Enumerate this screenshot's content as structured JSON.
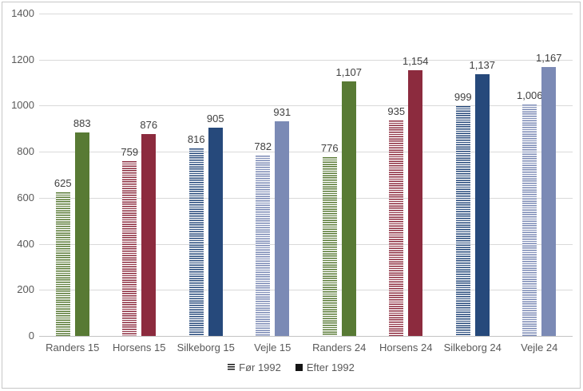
{
  "chart_data": {
    "type": "bar",
    "title": "",
    "categories": [
      "Randers 15",
      "Horsens 15",
      "Silkeborg 15",
      "Vejle 15",
      "Randers 24",
      "Horsens 24",
      "Silkeborg 24",
      "Vejle 24"
    ],
    "series": [
      {
        "name": "Før 1992",
        "pattern": "striped",
        "values": [
          625,
          759,
          816,
          782,
          776,
          935,
          999,
          1006
        ],
        "labels": [
          "625",
          "759",
          "816",
          "782",
          "776",
          "935",
          "999",
          "1,006"
        ]
      },
      {
        "name": "Efter 1992",
        "pattern": "solid",
        "values": [
          883,
          876,
          905,
          931,
          1107,
          1154,
          1137,
          1167
        ],
        "labels": [
          "883",
          "876",
          "905",
          "931",
          "1,107",
          "1,154",
          "1,137",
          "1,167"
        ]
      }
    ],
    "point_colors": [
      "#587A34",
      "#8C2B3E",
      "#26497B",
      "#7B8AB5",
      "#587A34",
      "#8C2B3E",
      "#26497B",
      "#7B8AB5"
    ],
    "ylim": [
      0,
      1400
    ],
    "yticks": [
      "0",
      "200",
      "400",
      "600",
      "800",
      "1000",
      "1200",
      "1400"
    ],
    "grid": true,
    "legend_position": "bottom",
    "legend_marker_color": "#141414"
  },
  "styles": {
    "axis_label_color": "#595959",
    "data_label_color": "#404040",
    "gridline_color": "#D9D9D9",
    "frame_border_color": "#C7C7C7",
    "background": "#FFFFFF"
  }
}
